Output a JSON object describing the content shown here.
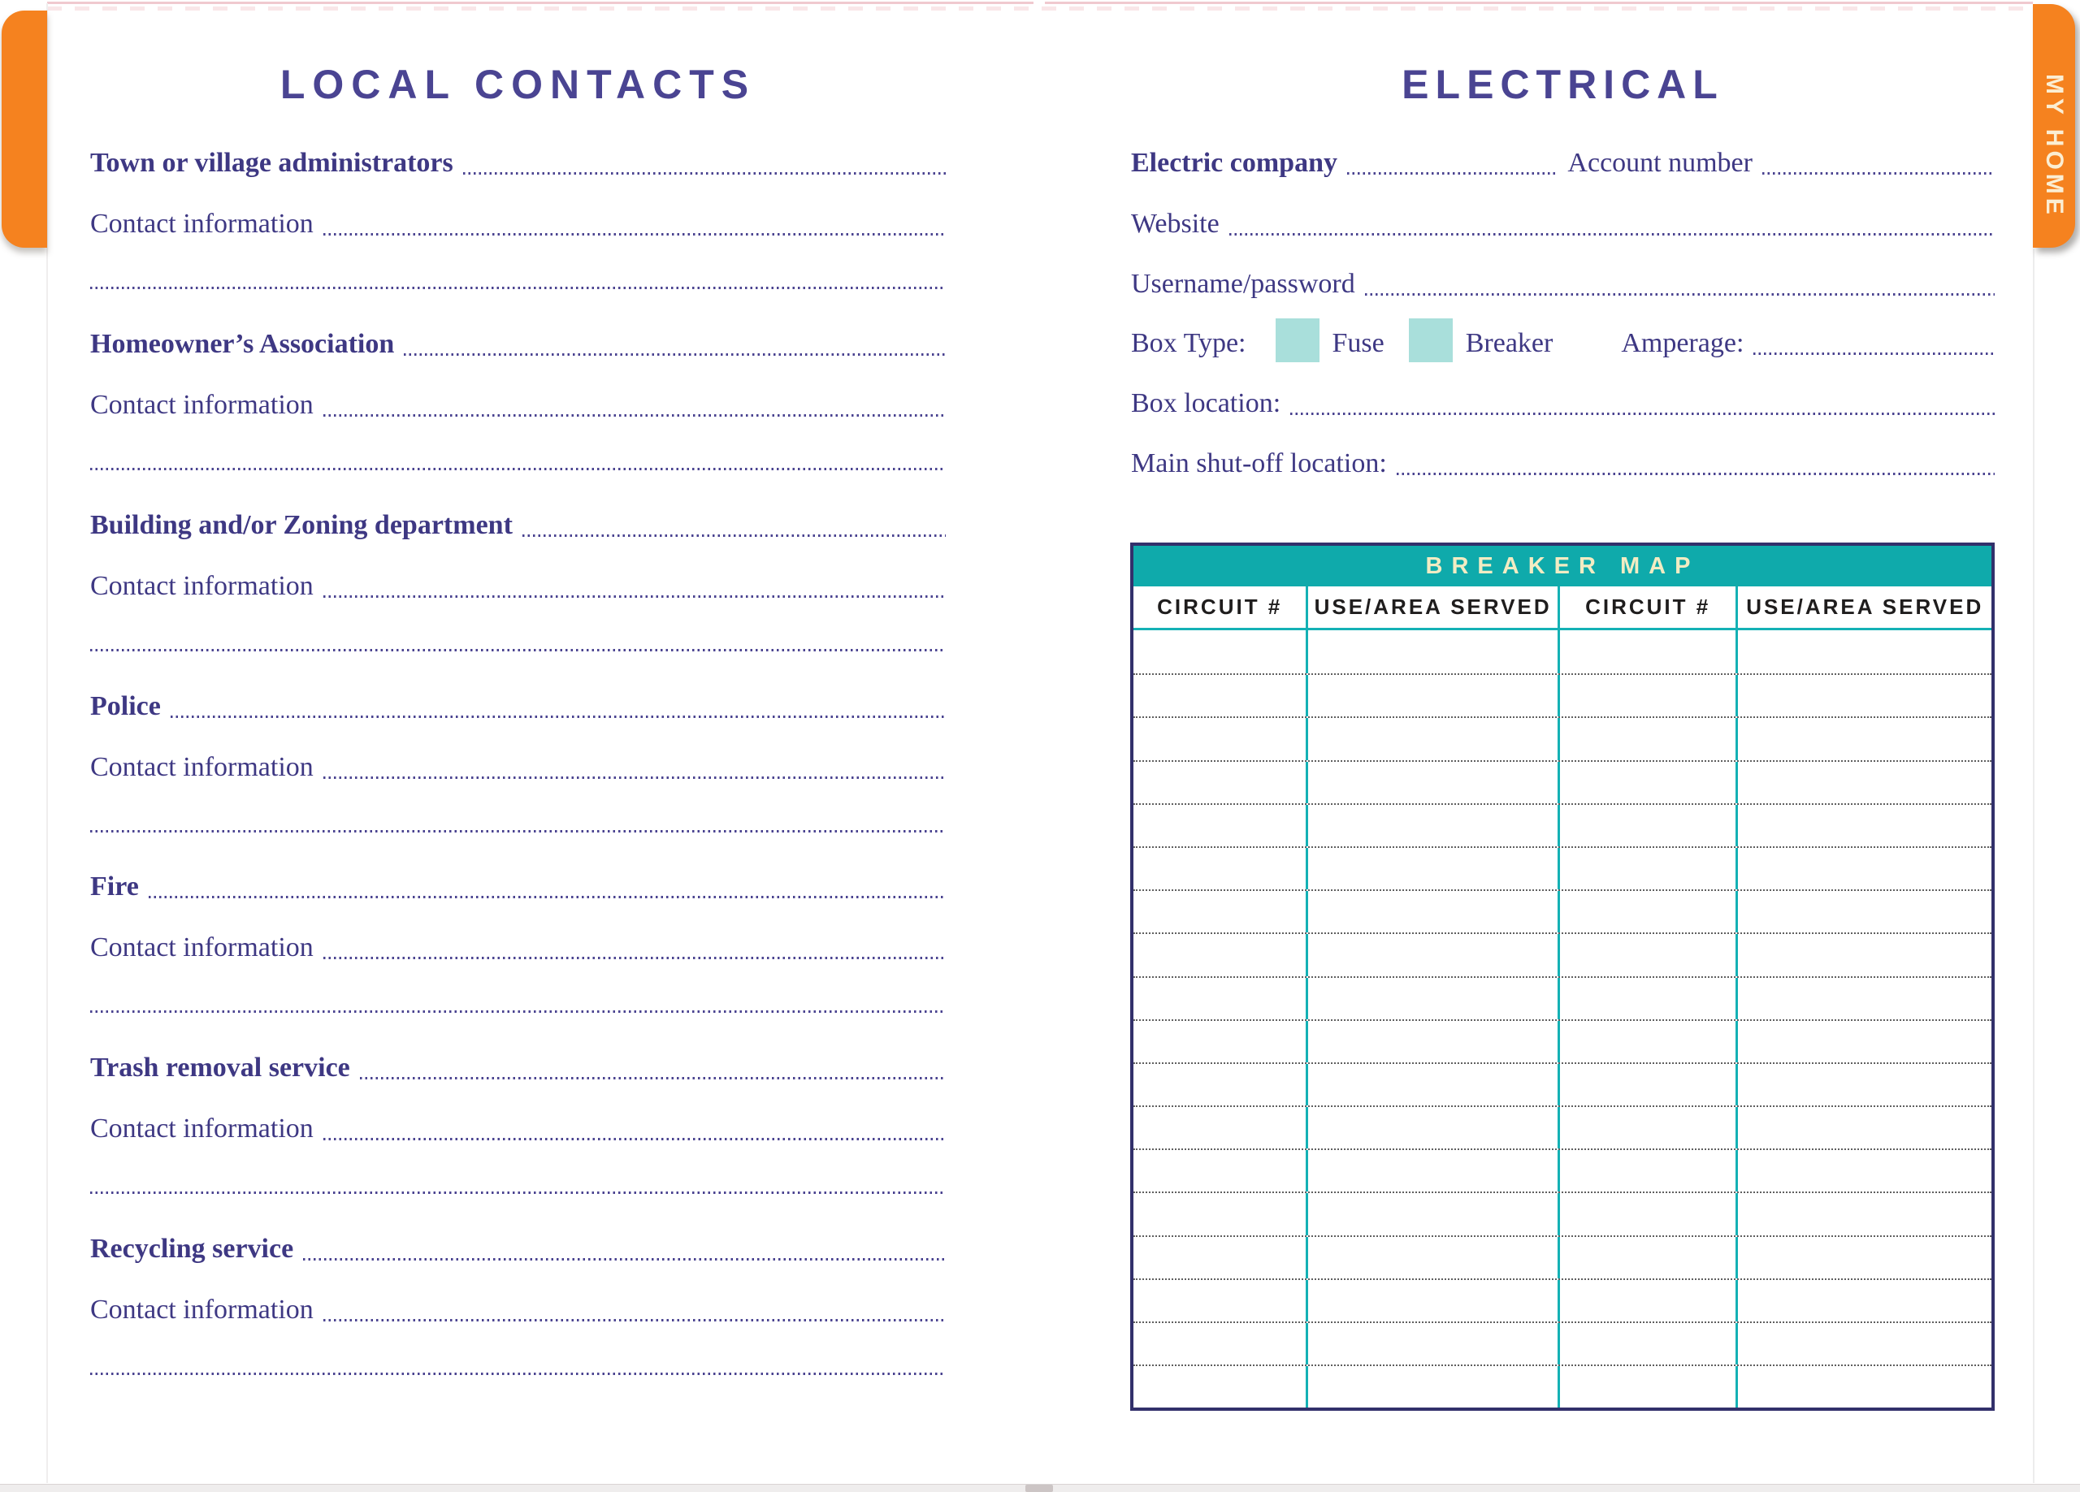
{
  "section_tab": {
    "label": "MY HOME"
  },
  "left_page": {
    "title": "LOCAL CONTACTS",
    "contact_label": "Contact information",
    "sections": [
      {
        "label": "Town or village administrators"
      },
      {
        "label": "Homeowner’s Association"
      },
      {
        "label": "Building and/or Zoning department"
      },
      {
        "label": "Police"
      },
      {
        "label": "Fire"
      },
      {
        "label": "Trash removal service"
      },
      {
        "label": "Recycling service"
      }
    ]
  },
  "right_page": {
    "title": "ELECTRICAL",
    "fields": {
      "electric_company": "Electric company",
      "account_number": "Account number",
      "website": "Website",
      "username_password": "Username/password",
      "box_type": "Box Type:",
      "fuse": "Fuse",
      "breaker": "Breaker",
      "amperage": "Amperage:",
      "box_location": "Box location:",
      "main_shutoff": "Main shut-off location:"
    },
    "breaker_map": {
      "title": "BREAKER MAP",
      "columns": [
        "CIRCUIT #",
        "USE/AREA SERVED",
        "CIRCUIT #",
        "USE/AREA SERVED"
      ],
      "row_count": 18
    }
  },
  "colors": {
    "accent_orange": "#F5821F",
    "banner_teal": "#0FAAAB",
    "line_teal": "#14B1B5",
    "checkbox_teal": "#A9DFDB",
    "ink_purple": "#3E3883",
    "title_purple": "#4A4492",
    "table_navy": "#32306B",
    "cream": "#F2ECC3"
  }
}
